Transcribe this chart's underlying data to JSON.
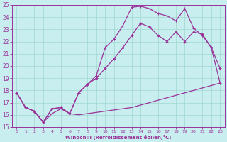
{
  "xlabel": "Windchill (Refroidissement éolien,°C)",
  "background_color": "#c8eef0",
  "grid_color": "#a0d8d0",
  "line_color": "#993399",
  "xlim": [
    -0.5,
    23.5
  ],
  "ylim": [
    15,
    25
  ],
  "xticks": [
    0,
    1,
    2,
    3,
    4,
    5,
    6,
    7,
    8,
    9,
    10,
    11,
    12,
    13,
    14,
    15,
    16,
    17,
    18,
    19,
    20,
    21,
    22,
    23
  ],
  "yticks": [
    15,
    16,
    17,
    18,
    19,
    20,
    21,
    22,
    23,
    24,
    25
  ],
  "curve1_x": [
    0,
    1,
    2,
    3,
    4,
    5,
    6,
    7,
    8,
    9,
    10,
    11,
    12,
    13,
    14,
    15,
    16,
    17,
    18,
    19,
    20,
    21,
    22,
    23
  ],
  "curve1_y": [
    17.8,
    16.6,
    16.3,
    15.4,
    16.1,
    16.5,
    16.1,
    16.0,
    16.1,
    16.2,
    16.3,
    16.4,
    16.5,
    16.6,
    16.8,
    17.0,
    17.2,
    17.4,
    17.6,
    17.8,
    18.0,
    18.2,
    18.4,
    18.6
  ],
  "curve2_x": [
    0,
    1,
    2,
    3,
    4,
    5,
    6,
    7,
    8,
    9,
    10,
    11,
    12,
    13,
    14,
    15,
    16,
    17,
    18,
    19,
    20,
    21,
    22,
    23
  ],
  "curve2_y": [
    17.8,
    16.6,
    16.3,
    15.4,
    16.5,
    16.6,
    16.1,
    17.8,
    18.5,
    19.0,
    19.8,
    20.6,
    21.5,
    22.5,
    23.5,
    23.2,
    22.5,
    22.0,
    22.8,
    22.0,
    22.8,
    22.6,
    21.5,
    19.8
  ],
  "curve3_x": [
    0,
    1,
    2,
    3,
    4,
    5,
    6,
    7,
    8,
    9,
    10,
    11,
    12,
    13,
    14,
    15,
    16,
    17,
    18,
    19,
    20,
    21,
    22,
    23
  ],
  "curve3_y": [
    17.8,
    16.6,
    16.3,
    15.4,
    16.5,
    16.6,
    16.1,
    17.8,
    18.5,
    19.2,
    21.5,
    22.2,
    23.3,
    24.8,
    24.9,
    24.7,
    24.3,
    24.1,
    23.7,
    24.7,
    23.1,
    22.5,
    21.5,
    18.6
  ]
}
